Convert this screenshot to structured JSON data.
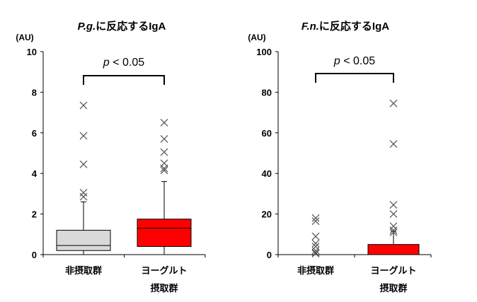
{
  "chart_data": [
    {
      "type": "box",
      "title_italic": "P.g.",
      "title_rest": "に反応するIgA",
      "ylabel": "(AU)",
      "ylim": [
        0,
        10
      ],
      "yticks": [
        0,
        2,
        4,
        6,
        8,
        10
      ],
      "categories": [
        "非摂取群",
        "ヨーグルト|摂取群"
      ],
      "annotation": {
        "p_label": "p",
        "p_rest": " < 0.05"
      },
      "boxes": [
        {
          "name": "非摂取群",
          "color": "#d9d9d9",
          "whisker_low": 0,
          "q1": 0.2,
          "median": 0.45,
          "q3": 1.2,
          "whisker_high": 2.6,
          "outliers": [
            2.85,
            3.05,
            4.45,
            5.85,
            7.35
          ]
        },
        {
          "name": "ヨーグルト摂取群",
          "color": "#ff0000",
          "whisker_low": 0,
          "q1": 0.4,
          "median": 1.3,
          "q3": 1.75,
          "whisker_high": 3.6,
          "outliers": [
            4.15,
            4.25,
            4.5,
            5.05,
            5.7,
            6.5
          ]
        }
      ]
    },
    {
      "type": "box",
      "title_italic": "F.n.",
      "title_rest": "に反応するIgA",
      "ylabel": "(AU)",
      "ylim": [
        0,
        100
      ],
      "yticks": [
        0,
        20,
        40,
        60,
        80,
        100
      ],
      "categories": [
        "非摂取群",
        "ヨーグルト|摂取群"
      ],
      "annotation": {
        "p_label": "p",
        "p_rest": " < 0.05"
      },
      "boxes": [
        {
          "name": "非摂取群",
          "color": "#d9d9d9",
          "whisker_low": 0,
          "q1": 0,
          "median": 0,
          "q3": 0,
          "whisker_high": 0,
          "outliers": [
            0.5,
            1,
            2,
            4,
            5.5,
            9,
            16.5,
            18
          ]
        },
        {
          "name": "ヨーグルト摂取群",
          "color": "#ff0000",
          "whisker_low": 0,
          "q1": 0,
          "median": 0,
          "q3": 5,
          "whisker_high": 11.5,
          "outliers": [
            11,
            12,
            14,
            20,
            24.5,
            54.5,
            74.5
          ]
        }
      ]
    }
  ]
}
